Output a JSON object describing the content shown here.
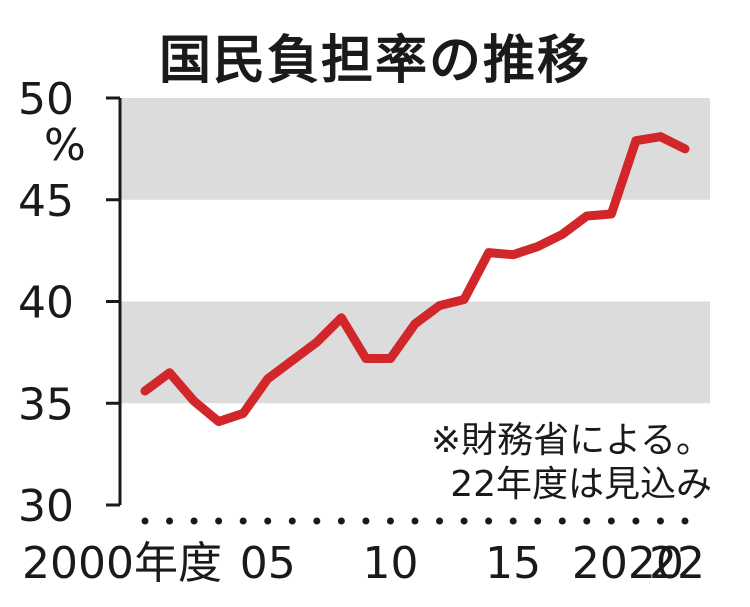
{
  "chart_data": {
    "type": "line",
    "title": "国民負担率の推移",
    "unit": "%",
    "xlabel": "",
    "ylabel": "",
    "ylim": [
      30,
      50
    ],
    "yticks": [
      50,
      45,
      40,
      35,
      30
    ],
    "x": [
      2000,
      2001,
      2002,
      2003,
      2004,
      2005,
      2006,
      2007,
      2008,
      2009,
      2010,
      2011,
      2012,
      2013,
      2014,
      2015,
      2016,
      2017,
      2018,
      2019,
      2020,
      2021,
      2022
    ],
    "xtick_labels": [
      {
        "x": 2000,
        "label": "2000年度"
      },
      {
        "x": 2005,
        "label": "05"
      },
      {
        "x": 2010,
        "label": "10"
      },
      {
        "x": 2015,
        "label": "15"
      },
      {
        "x": 2020,
        "label": "2020"
      },
      {
        "x": 2022,
        "label": "22"
      }
    ],
    "series": [
      {
        "values": [
          35.6,
          36.5,
          35.1,
          34.1,
          34.5,
          36.2,
          37.1,
          38.0,
          39.2,
          37.2,
          37.2,
          38.9,
          39.8,
          40.1,
          42.4,
          42.3,
          42.7,
          43.3,
          44.2,
          44.3,
          47.9,
          48.1,
          47.5
        ],
        "color": "#d1262a"
      }
    ],
    "bands": [
      [
        45,
        50
      ],
      [
        35,
        40
      ]
    ],
    "band_color": "#dcdcdc",
    "annotation": [
      "※財務省による。",
      "22年度は見込み"
    ]
  }
}
